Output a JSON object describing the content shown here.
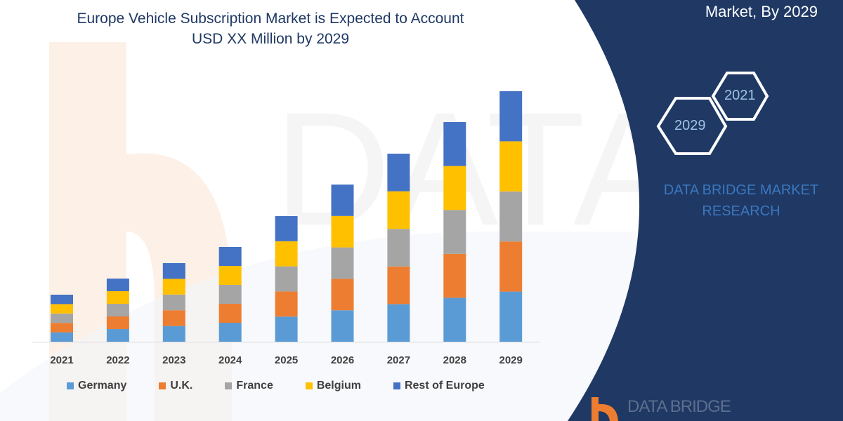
{
  "header": {
    "title_line1": "Europe Vehicle Subscription Market is Expected to Account",
    "title_line2": "USD XX Million by 2029"
  },
  "side_panel": {
    "heading": "Market, By 2029",
    "hex_years": [
      "2021",
      "2029"
    ],
    "brand_line1": "DATA BRIDGE MARKET",
    "brand_line2": "RESEARCH",
    "logo_text": "DATA BRIDGE",
    "panel_color": "#1f3864"
  },
  "chart_data": {
    "type": "bar",
    "stacked": true,
    "title": "Europe Vehicle Subscription Market is Expected to Account USD XX Million by 2029",
    "xlabel": "",
    "ylabel": "",
    "y_axis_shown": false,
    "grid": false,
    "legend_position": "bottom",
    "categories": [
      "2021",
      "2022",
      "2023",
      "2024",
      "2025",
      "2026",
      "2027",
      "2028",
      "2029"
    ],
    "series": [
      {
        "name": "Germany",
        "color": "#5b9bd5",
        "values": [
          13.4,
          18,
          22.4,
          27,
          35.8,
          44.8,
          53.6,
          62.6,
          71.4
        ]
      },
      {
        "name": "U.K.",
        "color": "#ed7d31",
        "values": [
          13.4,
          18,
          22.4,
          27,
          35.8,
          44.8,
          53.6,
          62.6,
          71.4
        ]
      },
      {
        "name": "France",
        "color": "#a5a5a5",
        "values": [
          13.4,
          18,
          22.4,
          27,
          35.8,
          44.8,
          53.6,
          62.6,
          71.4
        ]
      },
      {
        "name": "Belgium",
        "color": "#ffc000",
        "values": [
          13.4,
          18,
          22.4,
          27,
          35.8,
          44.8,
          53.6,
          62.6,
          71.4
        ]
      },
      {
        "name": "Rest of Europe",
        "color": "#4472c4",
        "values": [
          13.4,
          18,
          22.4,
          27,
          35.8,
          44.8,
          53.6,
          62.6,
          71.4
        ]
      }
    ]
  }
}
